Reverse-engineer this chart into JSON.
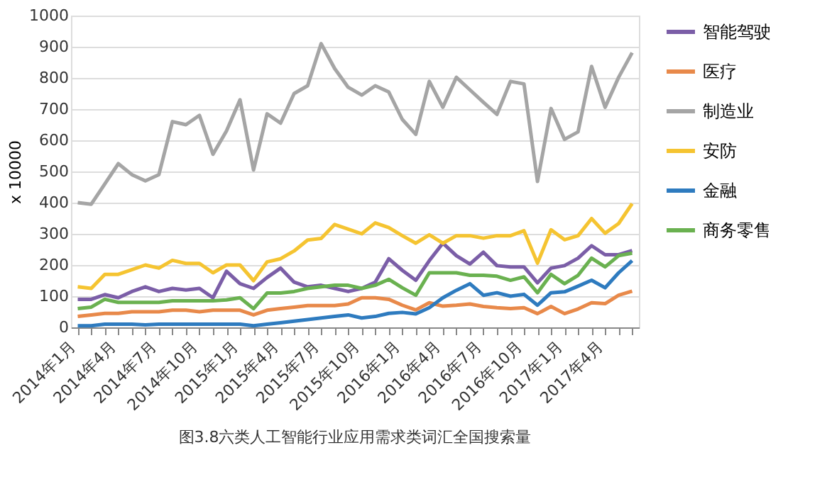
{
  "chart_data": {
    "type": "line",
    "ylabel": "x 10000",
    "annotations": [
      "图3.8六类人工智能行业应用需求类词汇全国搜索量"
    ],
    "categories": [
      "2014年1月",
      null,
      null,
      "2014年4月",
      null,
      null,
      "2014年7月",
      null,
      null,
      "2014年10月",
      null,
      null,
      "2015年1月",
      null,
      null,
      "2015年4月",
      null,
      null,
      "2015年7月",
      null,
      null,
      "2015年10月",
      null,
      null,
      "2016年1月",
      null,
      null,
      "2016年4月",
      null,
      null,
      "2016年7月",
      null,
      null,
      "2016年10月",
      null,
      null,
      "2017年1月",
      null,
      null,
      "2017年4月",
      null,
      null
    ],
    "series": [
      {
        "name": "智能驾驶",
        "color": "#7b5ea7",
        "values": [
          90,
          90,
          105,
          95,
          115,
          130,
          115,
          125,
          120,
          125,
          95,
          180,
          140,
          125,
          160,
          190,
          145,
          130,
          135,
          125,
          115,
          125,
          145,
          220,
          183,
          151,
          214,
          270,
          230,
          203,
          241,
          198,
          194,
          194,
          143,
          190,
          198,
          222,
          262,
          233,
          233,
          246
        ]
      },
      {
        "name": "医疗",
        "color": "#e8894a",
        "values": [
          35,
          40,
          45,
          45,
          50,
          50,
          50,
          55,
          55,
          50,
          55,
          55,
          55,
          40,
          55,
          60,
          65,
          70,
          70,
          70,
          75,
          95,
          95,
          90,
          71,
          56,
          79,
          68,
          71,
          75,
          67,
          63,
          60,
          63,
          44,
          67,
          44,
          59,
          79,
          76,
          103,
          116
        ]
      },
      {
        "name": "制造业",
        "color": "#a5a5a5",
        "values": [
          400,
          395,
          460,
          525,
          490,
          470,
          490,
          660,
          650,
          680,
          555,
          630,
          730,
          505,
          685,
          655,
          750,
          775,
          910,
          830,
          770,
          745,
          775,
          755,
          667,
          619,
          789,
          706,
          802,
          762,
          722,
          683,
          789,
          781,
          468,
          702,
          603,
          627,
          837,
          706,
          802,
          881
        ]
      },
      {
        "name": "安防",
        "color": "#f5c431",
        "values": [
          130,
          125,
          170,
          170,
          185,
          200,
          190,
          215,
          205,
          205,
          175,
          200,
          200,
          150,
          210,
          220,
          245,
          280,
          285,
          330,
          315,
          300,
          335,
          320,
          294,
          270,
          297,
          270,
          294,
          294,
          286,
          294,
          294,
          310,
          206,
          313,
          281,
          294,
          349,
          302,
          333,
          397
        ]
      },
      {
        "name": "金融",
        "color": "#2e7bbf",
        "values": [
          5,
          5,
          10,
          10,
          10,
          8,
          10,
          10,
          10,
          10,
          10,
          10,
          10,
          5,
          10,
          15,
          20,
          25,
          30,
          35,
          40,
          30,
          35,
          45,
          48,
          43,
          63,
          95,
          119,
          140,
          103,
          111,
          100,
          106,
          71,
          111,
          114,
          132,
          151,
          127,
          175,
          214
        ]
      },
      {
        "name": "商务零售",
        "color": "#6ab150",
        "values": [
          60,
          65,
          90,
          80,
          80,
          80,
          80,
          85,
          85,
          85,
          85,
          88,
          95,
          60,
          110,
          110,
          115,
          125,
          130,
          135,
          135,
          125,
          135,
          154,
          127,
          103,
          175,
          175,
          175,
          167,
          167,
          164,
          151,
          162,
          111,
          170,
          140,
          167,
          222,
          194,
          230,
          238
        ]
      }
    ],
    "ylim": [
      0,
      1000
    ],
    "yticks": [
      0,
      100,
      200,
      300,
      400,
      500,
      600,
      700,
      800,
      900,
      1000
    ],
    "grid": "y",
    "legend": "right",
    "marker": "none",
    "line_style": "solid"
  }
}
